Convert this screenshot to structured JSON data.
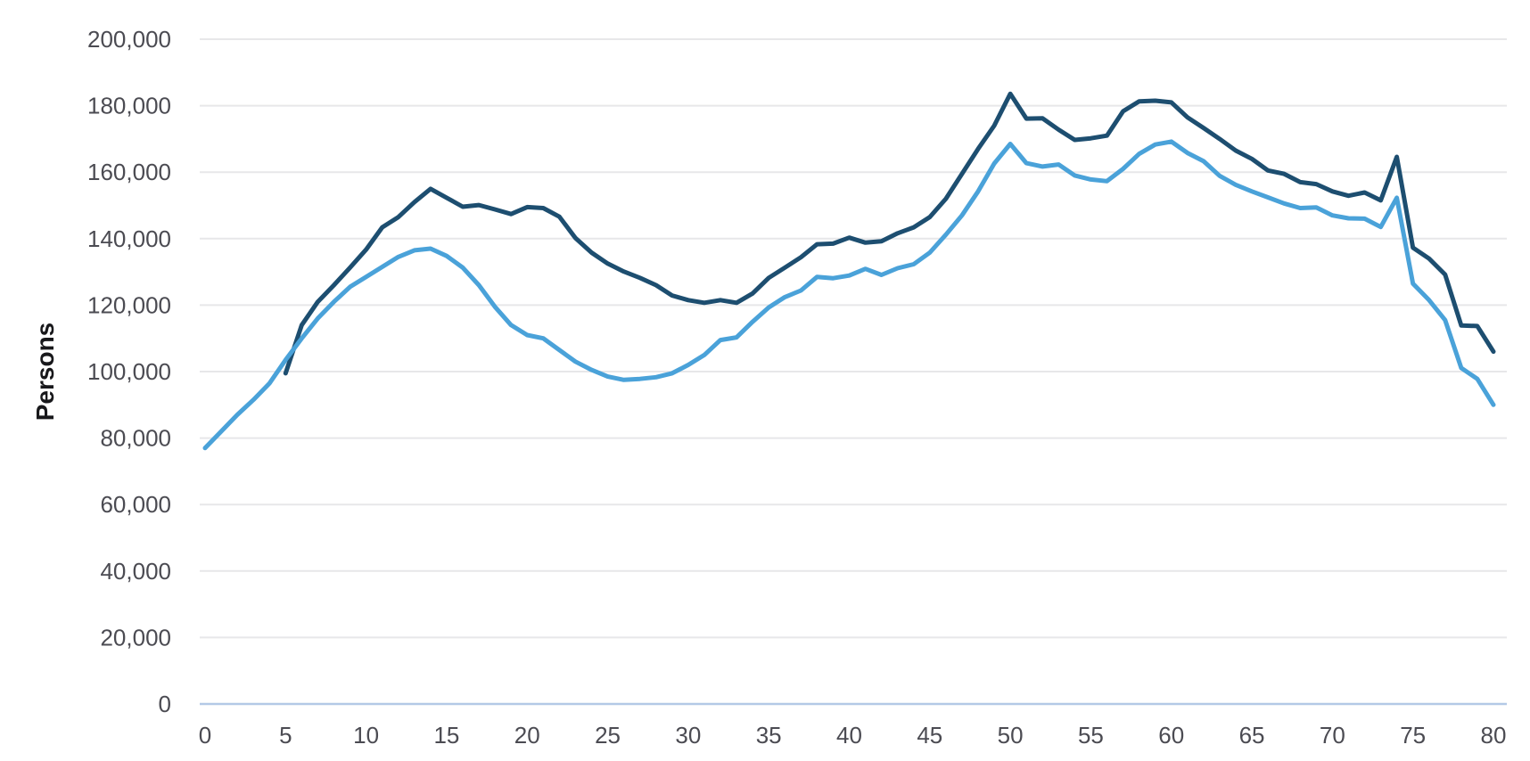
{
  "chart_data": {
    "type": "line",
    "title": "",
    "xlabel": "",
    "ylabel": "Persons",
    "xlim": [
      0,
      80
    ],
    "ylim": [
      0,
      200000
    ],
    "grid": "horizontal",
    "legend": "none",
    "x_tick_values": [
      0,
      5,
      10,
      15,
      20,
      25,
      30,
      35,
      40,
      45,
      50,
      55,
      60,
      65,
      70,
      75,
      80
    ],
    "x_tick_labels": [
      "0",
      "5",
      "10",
      "15",
      "20",
      "25",
      "30",
      "35",
      "40",
      "45",
      "50",
      "55",
      "60",
      "65",
      "70",
      "75",
      "80"
    ],
    "y_tick_values": [
      0,
      20000,
      40000,
      60000,
      80000,
      100000,
      120000,
      140000,
      160000,
      180000,
      200000
    ],
    "y_tick_labels": [
      "0",
      "20,000",
      "40,000",
      "60,000",
      "80,000",
      "100,000",
      "120,000",
      "140,000",
      "160,000",
      "180,000",
      "200,000"
    ],
    "series": [
      {
        "name": "dark-navy-line",
        "color": "#1d4e70",
        "x_start": 5,
        "values": [
          99500,
          114000,
          121000,
          126000,
          131300,
          136700,
          143400,
          146500,
          151000,
          155000,
          152300,
          149600,
          150100,
          148800,
          147400,
          149500,
          149200,
          146600,
          140200,
          135800,
          132500,
          130100,
          128200,
          126000,
          122900,
          121500,
          120700,
          121500,
          120700,
          123500,
          128200,
          131300,
          134400,
          138300,
          138500,
          140300,
          138800,
          139200,
          141600,
          143400,
          146500,
          152000,
          159500,
          167000,
          174000,
          183600,
          176100,
          176200,
          172800,
          169700,
          170200,
          171000,
          178300,
          181300,
          181500,
          181000,
          176500,
          173300,
          170000,
          166500,
          164000,
          160500,
          159500,
          157000,
          156400,
          154200,
          152900,
          153900,
          151500,
          164600,
          137300,
          134000,
          129200,
          113900,
          113700,
          106000
        ]
      },
      {
        "name": "light-blue-line",
        "color": "#4aa2d9",
        "x_start": 0,
        "values": [
          77000,
          82000,
          87000,
          91500,
          96500,
          103500,
          110000,
          116000,
          121000,
          125500,
          128500,
          131500,
          134500,
          136500,
          137000,
          134800,
          131300,
          126000,
          119500,
          114000,
          111000,
          110000,
          106500,
          103000,
          100500,
          98500,
          97500,
          97800,
          98300,
          99500,
          102000,
          105000,
          109500,
          110300,
          115000,
          119300,
          122400,
          124400,
          128500,
          128100,
          128900,
          130900,
          129100,
          131100,
          132300,
          135800,
          141200,
          147000,
          154200,
          162600,
          168500,
          162700,
          161700,
          162300,
          159000,
          157800,
          157300,
          161000,
          165500,
          168300,
          169200,
          165800,
          163300,
          158900,
          156200,
          154200,
          152400,
          150600,
          149200,
          149400,
          147000,
          146100,
          146000,
          143500,
          152300,
          126500,
          121500,
          115500,
          101100,
          97800,
          90000
        ]
      }
    ]
  },
  "colors": {
    "background": "#ffffff",
    "gridline": "#e7e7e9",
    "zero_axis": "#b3c9e6",
    "tick_text": "#4b4b52",
    "axis_title_text": "#18181b"
  }
}
